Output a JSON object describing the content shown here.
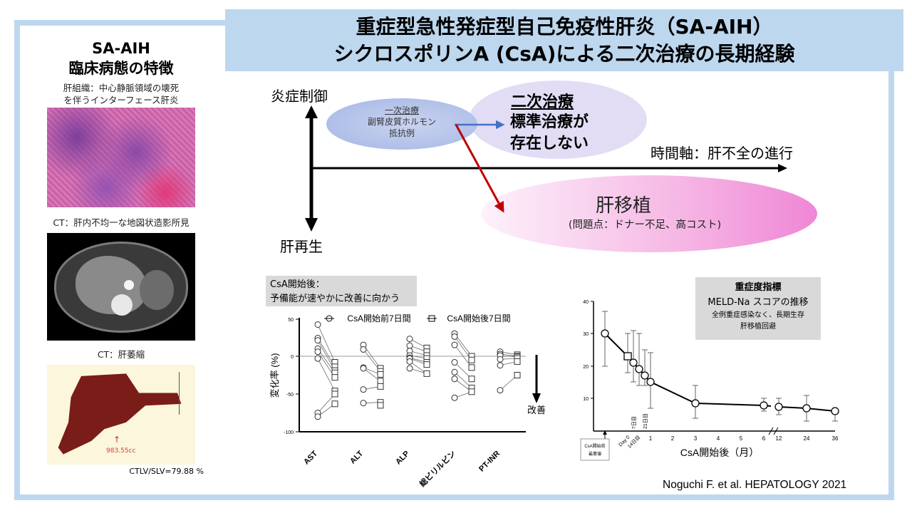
{
  "title": {
    "line1": "重症型急性発症型自己免疫性肝炎（SA-AIH）",
    "line2": "シクロスポリンA (CsA)による二次治療の長期経験"
  },
  "left_panel": {
    "heading_line1": "SA-AIH",
    "heading_line2": "臨床病態の特徴",
    "histology_caption_line1": "肝組織：中心静脈領域の壊死",
    "histology_caption_line2": "を伴うインターフェース肝炎",
    "ct1_caption": "CT：肝内不均一な地図状造影所見",
    "ct2_caption": "CT：肝萎縮",
    "ct2_volume": "983.55cc",
    "ratio": "CTLV/SLV=79.88 %"
  },
  "diagram": {
    "y_axis_top": "炎症制御",
    "y_axis_bottom": "肝再生",
    "x_axis_label": "時間軸：肝不全の進行",
    "first_line_title": "一次治療",
    "first_line_body1": "副腎皮質ホルモン",
    "first_line_body2": "抵抗例",
    "second_line_title": "二次治療",
    "second_line_body1": "標準治療が",
    "second_line_body2": "存在しない",
    "transplant_title": "肝移植",
    "transplant_sub": "(問題点：ドナー不足、高コスト)",
    "colors": {
      "blue_arrow": "#4472c4",
      "red_arrow": "#c00000",
      "banner": "#bdd7ee"
    }
  },
  "chart_left_note": {
    "line1": "CsA開始後：",
    "line2": "予備能が速やかに改善に向かう"
  },
  "chart_right_note": {
    "line1": "重症度指標",
    "line2": "MELD-Na スコアの推移",
    "line3": "全例重症感染なく、長期生存",
    "line4": "肝移植回避"
  },
  "chart_data": [
    {
      "type": "scatter",
      "title": "",
      "ylabel": "変化率 (%)",
      "xlabel": "",
      "ylim": [
        -100,
        50
      ],
      "yticks": [
        50,
        0,
        -50,
        -100
      ],
      "categories": [
        "AST",
        "ALT",
        "ALP",
        "総ビリルビン",
        "PT-INR"
      ],
      "legend": [
        "CsA開始前7日間",
        "CsA開始後7日間"
      ],
      "annotation": "改善",
      "series": [
        {
          "name": "CsA開始前7日間",
          "values": [
            [
              42,
              24,
              21,
              10,
              6,
              -3,
              -75,
              -80
            ],
            [
              15,
              9,
              -15,
              -16,
              -44,
              -62
            ],
            [
              23,
              14,
              7,
              1,
              -2,
              -3,
              -7,
              -16
            ],
            [
              30,
              26,
              15,
              -8,
              -21,
              -30,
              -55
            ],
            [
              6,
              3,
              1,
              -4,
              -12,
              -45
            ]
          ]
        },
        {
          "name": "CsA開始後7日間",
          "values": [
            [
              -8,
              -14,
              -19,
              -22,
              -28,
              -46,
              -50,
              -63
            ],
            [
              -16,
              -20,
              -24,
              -33,
              -40,
              -61,
              -65
            ],
            [
              11,
              6,
              1,
              -3,
              -8,
              -11,
              -23
            ],
            [
              0,
              -5,
              -15,
              -30,
              -42,
              -47
            ],
            [
              2,
              0,
              -1,
              -3,
              -7,
              -25
            ]
          ]
        }
      ]
    },
    {
      "type": "line",
      "title": "MELD-Na スコアの推移",
      "xlabel": "CsA開始後（月）",
      "ylabel": "",
      "ylim": [
        0,
        40
      ],
      "yticks": [
        10,
        20,
        30,
        40
      ],
      "x_labels": [
        "CsA開始前最悪値",
        "Day 0",
        "7日目",
        "14日目",
        "21日目",
        "1",
        "2",
        "3",
        "4",
        "5",
        "6",
        "12",
        "24",
        "36"
      ],
      "points": [
        {
          "x": "CsA開始前最悪値",
          "y": 29,
          "err": [
            20,
            37
          ]
        },
        {
          "x": "Day 0",
          "y": 22,
          "err": [
            17,
            29
          ]
        },
        {
          "x": "7日目",
          "y": 19.5,
          "err": [
            13,
            31
          ]
        },
        {
          "x": "14日目",
          "y": 17.5,
          "err": [
            11,
            30
          ]
        },
        {
          "x": "21日目",
          "y": 16,
          "err": [
            11,
            25
          ]
        },
        {
          "x": "1",
          "y": 14,
          "err": [
            7,
            24
          ]
        },
        {
          "x": "3",
          "y": 7.5,
          "err": [
            4,
            15
          ]
        },
        {
          "x": "6",
          "y": 7,
          "err": [
            6,
            10
          ]
        },
        {
          "x": "12",
          "y": 6.5,
          "err": [
            5,
            10
          ]
        },
        {
          "x": "24",
          "y": 6,
          "err": [
            3,
            11
          ]
        },
        {
          "x": "36",
          "y": 5,
          "err": [
            3,
            6
          ]
        }
      ]
    }
  ],
  "citation": "Noguchi F. et al. HEPATOLOGY 2021"
}
